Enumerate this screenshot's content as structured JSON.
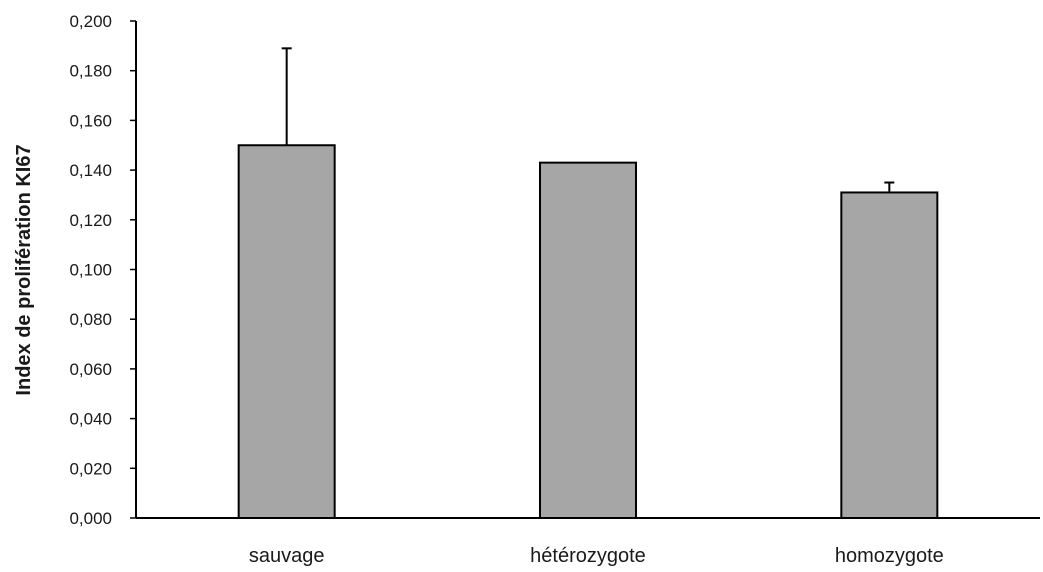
{
  "chart_data": {
    "type": "bar",
    "title": "",
    "xlabel": "",
    "ylabel": "Index de prolifération KI67",
    "categories": [
      "sauvage",
      "hétérozygote",
      "homozygote"
    ],
    "values": [
      0.15,
      0.143,
      0.131
    ],
    "error_plus": [
      0.039,
      0.0,
      0.004
    ],
    "ylim": [
      0,
      0.2
    ],
    "yticks": [
      0,
      0.02,
      0.04,
      0.06,
      0.08,
      0.1,
      0.12,
      0.14,
      0.16,
      0.18,
      0.2
    ],
    "ytick_labels": [
      "0,000",
      "0,020",
      "0,040",
      "0,060",
      "0,080",
      "0,100",
      "0,120",
      "0,140",
      "0,160",
      "0,180",
      "0,200"
    ],
    "grid": false,
    "legend": "none",
    "colors": {
      "bar_fill": "#a6a6a6",
      "bar_stroke": "#000000",
      "axis": "#000000"
    }
  }
}
